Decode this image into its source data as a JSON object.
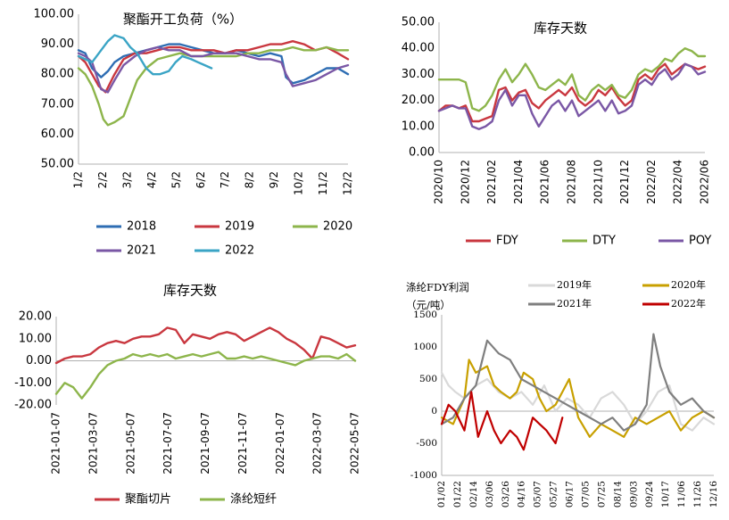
{
  "chart_data": [
    {
      "type": "line",
      "title": "聚酯开工负荷（%）",
      "ylim": [
        50,
        100
      ],
      "yticks": [
        "50.00",
        "60.00",
        "70.00",
        "80.00",
        "90.00",
        "100.00"
      ],
      "xticks": [
        "1/2",
        "2/2",
        "3/2",
        "4/2",
        "5/2",
        "6/2",
        "7/2",
        "8/2",
        "9/2",
        "10/2",
        "11/2",
        "12/2"
      ],
      "x_month_range": [
        0,
        11.95
      ],
      "legend": "bottom",
      "series": [
        {
          "name": "2018",
          "color": "#2e6db3",
          "x": [
            0,
            0.3,
            0.6,
            1,
            1.3,
            1.6,
            2,
            2.5,
            3,
            3.5,
            4,
            4.5,
            5,
            5.5,
            6,
            6.5,
            7,
            7.5,
            8,
            8.5,
            9,
            9.2,
            9.5,
            10,
            10.5,
            11,
            11.5,
            11.95
          ],
          "y": [
            88,
            87,
            82,
            79,
            81,
            84,
            86,
            87,
            88,
            89,
            90,
            90,
            89,
            88,
            87,
            87,
            88,
            87,
            86,
            87,
            86,
            79,
            77,
            78,
            80,
            82,
            82,
            80
          ]
        },
        {
          "name": "2019",
          "color": "#c9373f",
          "x": [
            0,
            0.3,
            0.6,
            0.9,
            1.2,
            1.6,
            2,
            2.5,
            3,
            3.5,
            4,
            4.5,
            5,
            5.5,
            6,
            6.5,
            7,
            7.5,
            8,
            8.5,
            9,
            9.5,
            10,
            10.5,
            11,
            11.5,
            11.95
          ],
          "y": [
            86,
            84,
            80,
            76,
            74,
            80,
            85,
            87,
            87,
            88,
            89,
            89,
            88,
            88,
            88,
            87,
            88,
            88,
            89,
            90,
            90,
            91,
            90,
            88,
            89,
            87,
            85
          ]
        },
        {
          "name": "2020",
          "color": "#8db54b",
          "x": [
            0,
            0.3,
            0.6,
            0.9,
            1.1,
            1.3,
            1.6,
            2,
            2.3,
            2.6,
            3,
            3.5,
            4,
            4.5,
            5,
            5.5,
            6,
            6.5,
            7,
            7.5,
            8,
            8.5,
            9,
            9.5,
            10,
            10.5,
            11,
            11.5,
            11.95
          ],
          "y": [
            82,
            80,
            76,
            70,
            65,
            63,
            64,
            66,
            72,
            78,
            82,
            85,
            86,
            87,
            86,
            86,
            86,
            86,
            86,
            87,
            87,
            88,
            88,
            89,
            88,
            88,
            89,
            88,
            88
          ]
        },
        {
          "name": "2021",
          "color": "#7a57a5",
          "x": [
            0,
            0.3,
            0.6,
            1,
            1.3,
            1.6,
            2,
            2.5,
            3,
            3.5,
            4,
            4.5,
            5,
            5.5,
            6,
            6.5,
            7,
            7.5,
            8,
            8.5,
            9,
            9.2,
            9.5,
            10,
            10.5,
            11,
            11.5,
            11.95
          ],
          "y": [
            87,
            86,
            84,
            75,
            74,
            78,
            83,
            86,
            88,
            89,
            88,
            88,
            86,
            86,
            87,
            87,
            87,
            86,
            85,
            85,
            84,
            80,
            76,
            77,
            78,
            80,
            82,
            83
          ]
        },
        {
          "name": "2022",
          "color": "#3aa4c5",
          "x": [
            0,
            0.3,
            0.6,
            1,
            1.3,
            1.6,
            2,
            2.3,
            2.6,
            3,
            3.3,
            3.6,
            4,
            4.3,
            4.6,
            5,
            5.3,
            5.6,
            5.9
          ],
          "y": [
            86,
            85,
            84,
            88,
            91,
            93,
            92,
            89,
            87,
            82,
            80,
            80,
            81,
            84,
            86,
            85,
            84,
            83,
            82
          ]
        }
      ]
    },
    {
      "type": "line",
      "title": "库存天数",
      "ylim": [
        0,
        50
      ],
      "yticks": [
        "0.00",
        "10.00",
        "20.00",
        "30.00",
        "40.00",
        "50.00"
      ],
      "xticks": [
        "2020/10",
        "2020/12",
        "2021/02",
        "2021/04",
        "2021/06",
        "2021/08",
        "2021/10",
        "2021/12",
        "2022/02",
        "2022/04",
        "2022/06"
      ],
      "x_month_range": [
        0,
        20
      ],
      "legend": "bottom",
      "series": [
        {
          "name": "FDY",
          "color": "#c9373f",
          "x": [
            0,
            0.5,
            1,
            1.5,
            2,
            2.5,
            3,
            3.5,
            4,
            4.5,
            5,
            5.5,
            6,
            6.5,
            7,
            7.5,
            8,
            8.5,
            9,
            9.5,
            10,
            10.5,
            11,
            11.5,
            12,
            12.5,
            13,
            13.5,
            14,
            14.5,
            15,
            15.5,
            16,
            16.5,
            17,
            17.5,
            18,
            18.5,
            19,
            19.5,
            20
          ],
          "y": [
            16,
            18,
            18,
            17,
            18,
            12,
            12,
            13,
            14,
            24,
            25,
            20,
            23,
            24,
            19,
            17,
            20,
            22,
            24,
            22,
            25,
            20,
            18,
            20,
            24,
            22,
            25,
            21,
            18,
            20,
            28,
            30,
            28,
            32,
            34,
            30,
            32,
            34,
            33,
            32,
            33
          ]
        },
        {
          "name": "DTY",
          "color": "#8db54b",
          "x": [
            0,
            0.5,
            1,
            1.5,
            2,
            2.5,
            3,
            3.5,
            4,
            4.5,
            5,
            5.5,
            6,
            6.5,
            7,
            7.5,
            8,
            8.5,
            9,
            9.5,
            10,
            10.5,
            11,
            11.5,
            12,
            12.5,
            13,
            13.5,
            14,
            14.5,
            15,
            15.5,
            16,
            16.5,
            17,
            17.5,
            18,
            18.5,
            19,
            19.5,
            20
          ],
          "y": [
            28,
            28,
            28,
            28,
            27,
            17,
            16,
            18,
            22,
            28,
            32,
            27,
            30,
            34,
            30,
            25,
            24,
            26,
            28,
            26,
            30,
            22,
            20,
            24,
            26,
            24,
            26,
            22,
            21,
            24,
            30,
            32,
            31,
            33,
            36,
            35,
            38,
            40,
            39,
            37,
            37
          ]
        },
        {
          "name": "POY",
          "color": "#7a57a5",
          "x": [
            0,
            0.5,
            1,
            1.5,
            2,
            2.5,
            3,
            3.5,
            4,
            4.5,
            5,
            5.5,
            6,
            6.5,
            7,
            7.5,
            8,
            8.5,
            9,
            9.5,
            10,
            10.5,
            11,
            11.5,
            12,
            12.5,
            13,
            13.5,
            14,
            14.5,
            15,
            15.5,
            16,
            16.5,
            17,
            17.5,
            18,
            18.5,
            19,
            19.5,
            20
          ],
          "y": [
            16,
            17,
            18,
            17,
            17,
            10,
            9,
            10,
            12,
            20,
            24,
            18,
            22,
            22,
            15,
            10,
            14,
            18,
            20,
            16,
            20,
            14,
            16,
            18,
            20,
            16,
            20,
            15,
            16,
            18,
            26,
            28,
            26,
            30,
            32,
            28,
            30,
            34,
            33,
            30,
            31
          ]
        }
      ]
    },
    {
      "type": "line",
      "title": "库存天数",
      "ylim": [
        -20,
        20
      ],
      "yticks": [
        "-20.00",
        "-10.00",
        "0.00",
        "10.00",
        "20.00"
      ],
      "xticks": [
        "2021-01-07",
        "2021-03-07",
        "2021-05-07",
        "2021-07-07",
        "2021-09-07",
        "2021-11-07",
        "2022-01-07",
        "2022-03-07",
        "2022-05-07"
      ],
      "x_month_range": [
        0,
        17.5
      ],
      "legend": "bottom",
      "series": [
        {
          "name": "聚酯切片",
          "color": "#c9373f",
          "x": [
            0,
            0.5,
            1,
            1.5,
            2,
            2.5,
            3,
            3.5,
            4,
            4.5,
            5,
            5.5,
            6,
            6.5,
            7,
            7.5,
            8,
            8.5,
            9,
            9.5,
            10,
            10.5,
            11,
            11.5,
            12,
            12.5,
            13,
            13.5,
            14,
            14.5,
            15,
            15.5,
            16,
            16.5,
            17,
            17.5
          ],
          "y": [
            -1,
            1,
            2,
            2,
            3,
            6,
            8,
            9,
            8,
            10,
            11,
            11,
            12,
            15,
            14,
            8,
            12,
            11,
            10,
            12,
            13,
            12,
            9,
            11,
            13,
            15,
            13,
            10,
            8,
            5,
            1,
            11,
            10,
            8,
            6,
            7
          ]
        },
        {
          "name": "涤纶短纤",
          "color": "#8db54b",
          "x": [
            0,
            0.5,
            1,
            1.5,
            2,
            2.5,
            3,
            3.5,
            4,
            4.5,
            5,
            5.5,
            6,
            6.5,
            7,
            7.5,
            8,
            8.5,
            9,
            9.5,
            10,
            10.5,
            11,
            11.5,
            12,
            12.5,
            13,
            13.5,
            14,
            14.5,
            15,
            15.5,
            16,
            16.5,
            17,
            17.5
          ],
          "y": [
            -15,
            -10,
            -12,
            -17,
            -12,
            -6,
            -2,
            0,
            1,
            3,
            2,
            3,
            2,
            3,
            1,
            2,
            3,
            2,
            3,
            4,
            1,
            1,
            2,
            1,
            2,
            1,
            0,
            -1,
            -2,
            0,
            1,
            2,
            2,
            1,
            3,
            0
          ]
        }
      ]
    },
    {
      "type": "line",
      "title": "涤纶FDY利润",
      "unit": "（元/吨）",
      "ylim": [
        -1000,
        1500
      ],
      "yticks": [
        "-1000",
        "-500",
        "0",
        "500",
        "1000",
        "1500"
      ],
      "xticks": [
        "01/02",
        "01/22",
        "02/14",
        "03/06",
        "03/26",
        "04/16",
        "05/07",
        "05/27",
        "06/17",
        "07/05",
        "07/25",
        "08/14",
        "09/03",
        "09/24",
        "10/17",
        "11/06",
        "11/26",
        "12/16"
      ],
      "x_month_range": [
        0,
        11.95
      ],
      "legend": "top",
      "series": [
        {
          "name": "2019年",
          "color": "#d9d9d9",
          "x": [
            0,
            0.3,
            0.6,
            1,
            1.5,
            2,
            2.5,
            3,
            3.5,
            4,
            4.5,
            5,
            5.5,
            6,
            6.5,
            7,
            7.5,
            8,
            8.5,
            9,
            9.5,
            10,
            10.5,
            11,
            11.5,
            11.95
          ],
          "y": [
            600,
            400,
            300,
            200,
            400,
            500,
            300,
            200,
            300,
            100,
            400,
            0,
            200,
            100,
            -100,
            200,
            300,
            100,
            -200,
            0,
            300,
            400,
            -200,
            -300,
            -100,
            -200
          ]
        },
        {
          "name": "2020年",
          "color": "#c8a000",
          "x": [
            0,
            0.5,
            1,
            1.2,
            1.5,
            2,
            2.3,
            2.6,
            3,
            3.3,
            3.6,
            4,
            4.3,
            4.6,
            5,
            5.3,
            5.6,
            6,
            6.5,
            7,
            7.5,
            8,
            8.5,
            9,
            9.5,
            10,
            10.5,
            11,
            11.5,
            11.95
          ],
          "y": [
            -100,
            -200,
            200,
            800,
            600,
            700,
            400,
            300,
            200,
            300,
            600,
            500,
            200,
            0,
            100,
            300,
            500,
            -100,
            -400,
            -200,
            -300,
            -400,
            -100,
            -200,
            -100,
            0,
            -300,
            -100,
            0,
            -100
          ]
        },
        {
          "name": "2021年",
          "color": "#7f7f7f",
          "x": [
            0,
            0.5,
            1,
            1.5,
            2,
            2.5,
            3,
            3.5,
            4,
            4.5,
            5,
            5.5,
            6,
            6.5,
            7,
            7.5,
            8,
            8.5,
            9,
            9.3,
            9.6,
            10,
            10.5,
            11,
            11.5,
            11.95
          ],
          "y": [
            -200,
            -100,
            200,
            400,
            1100,
            900,
            800,
            500,
            400,
            300,
            200,
            100,
            0,
            -100,
            -200,
            -100,
            -300,
            -200,
            100,
            1200,
            700,
            300,
            100,
            200,
            0,
            -100
          ]
        },
        {
          "name": "2022年",
          "color": "#c00000",
          "x": [
            0,
            0.3,
            0.6,
            1,
            1.3,
            1.6,
            2,
            2.3,
            2.6,
            3,
            3.3,
            3.6,
            4,
            4.3,
            4.6,
            5,
            5.3
          ],
          "y": [
            -200,
            100,
            0,
            -300,
            300,
            -400,
            0,
            -300,
            -500,
            -300,
            -400,
            -600,
            -100,
            -200,
            -300,
            -500,
            -100
          ]
        }
      ]
    }
  ]
}
